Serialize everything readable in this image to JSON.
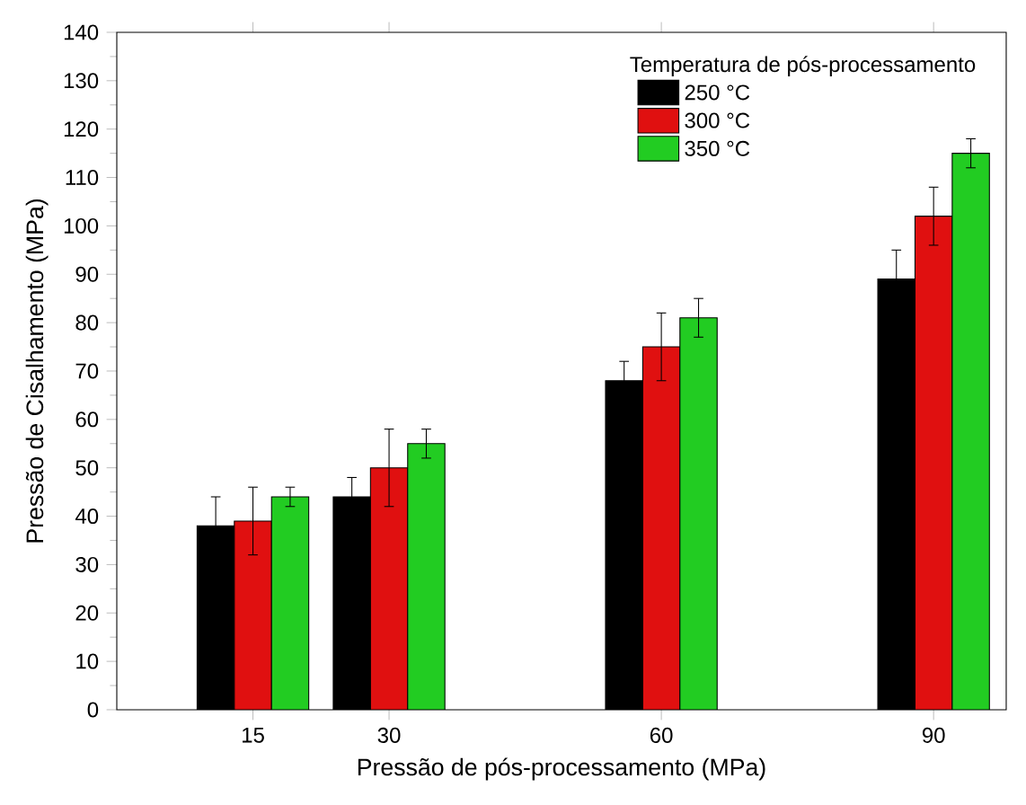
{
  "chart_data": {
    "type": "bar",
    "xlabel": "Pressão de pós-processamento (MPa)",
    "ylabel": "Pressão de Cisalhamento (MPa)",
    "legend_title": "Temperatura de pós-processamento",
    "x": [
      15,
      30,
      60,
      90
    ],
    "xlim": [
      0,
      98
    ],
    "xticks": [
      15,
      30,
      60,
      90
    ],
    "ylim": [
      0,
      140
    ],
    "yticks": [
      0,
      10,
      20,
      30,
      40,
      50,
      60,
      70,
      80,
      90,
      100,
      110,
      120,
      130,
      140
    ],
    "grid": false,
    "legend": "top right",
    "series": [
      {
        "name": "250 °C",
        "color": "#000000",
        "values": [
          38,
          44,
          68,
          89
        ],
        "errors": [
          6,
          4,
          4,
          6
        ]
      },
      {
        "name": "300 °C",
        "color": "#e01010",
        "values": [
          39,
          50,
          75,
          102
        ],
        "errors": [
          7,
          8,
          7,
          6
        ]
      },
      {
        "name": "350 °C",
        "color": "#22cc22",
        "values": [
          44,
          55,
          81,
          115
        ],
        "errors": [
          2,
          3,
          4,
          3
        ]
      }
    ]
  }
}
